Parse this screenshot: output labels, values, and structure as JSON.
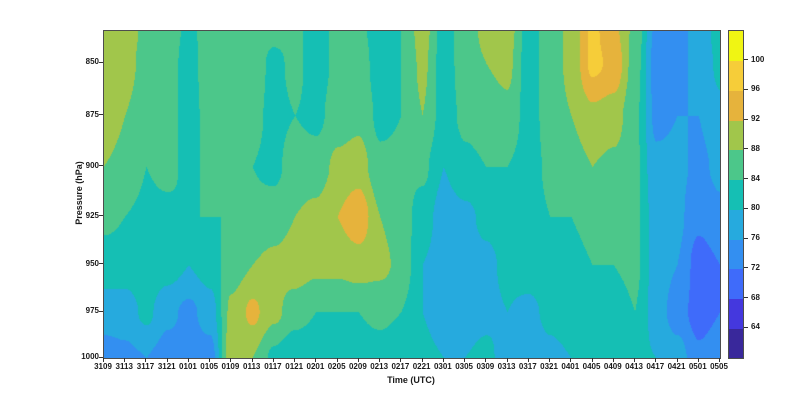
{
  "figure": {
    "background": "#ffffff",
    "frame_color": "#4d4d4d",
    "text_color": "#1a1a1a"
  },
  "axes": {
    "x_title": "Time (UTC)",
    "y_title": "Pressure (hPa)",
    "x_tick_labels": [
      "3109",
      "3113",
      "3117",
      "3121",
      "0101",
      "0105",
      "0109",
      "0113",
      "0117",
      "0121",
      "0201",
      "0205",
      "0209",
      "0213",
      "0217",
      "0221",
      "0301",
      "0305",
      "0309",
      "0313",
      "0317",
      "0321",
      "0401",
      "0405",
      "0409",
      "0413",
      "0417",
      "0421",
      "0501",
      "0505"
    ],
    "y_tick_labels": [
      "850",
      "875",
      "900",
      "925",
      "950",
      "975",
      "1000"
    ],
    "y_tick_values": [
      850,
      875,
      900,
      925,
      950,
      975,
      1000
    ],
    "y_scale": "log",
    "y_range": [
      835,
      1000
    ],
    "y_direction": "increasing-downward"
  },
  "colorbar": {
    "position": "right",
    "range": [
      60,
      104
    ],
    "band_size": 4,
    "tick_values": [
      64,
      68,
      72,
      76,
      80,
      84,
      88,
      92,
      96,
      100
    ],
    "tick_labels": [
      "64",
      "68",
      "72",
      "76",
      "80",
      "84",
      "88",
      "92",
      "96",
      "100"
    ],
    "band_colors_low_to_high": [
      "#39289b",
      "#4438de",
      "#3f6bfa",
      "#338ff1",
      "#26aade",
      "#15bfb4",
      "#4cc78a",
      "#a1c64b",
      "#e6b33c",
      "#f6cd39",
      "#f0f513"
    ]
  },
  "chart_data": {
    "type": "heatmap",
    "subtype": "filled-contour-time-height-section",
    "title": "",
    "xlabel": "Time (UTC)",
    "ylabel": "Pressure (hPa)",
    "legend": "discrete colorbar, bands of 4 from 60 to 104",
    "x": [
      "3109",
      "3113",
      "3117",
      "3121",
      "0101",
      "0105",
      "0109",
      "0113",
      "0117",
      "0121",
      "0201",
      "0205",
      "0209",
      "0213",
      "0217",
      "0221",
      "0301",
      "0305",
      "0309",
      "0313",
      "0317",
      "0321",
      "0401",
      "0405",
      "0409",
      "0413",
      "0417",
      "0421",
      "0501",
      "0505"
    ],
    "pressure_levels": [
      835,
      850,
      875,
      900,
      925,
      950,
      975,
      1000
    ],
    "values_by_pressure_row": [
      [
        90,
        90,
        87,
        86,
        83,
        86,
        87,
        86,
        85,
        85,
        82,
        85,
        85,
        82,
        84,
        90,
        82,
        86,
        89,
        90,
        82,
        86,
        89,
        97,
        93,
        87,
        75,
        75,
        77,
        82
      ],
      [
        90,
        90,
        86,
        86,
        82,
        87,
        87,
        86,
        83,
        85,
        82,
        85,
        86,
        82,
        84,
        89,
        82,
        86,
        88,
        89,
        82,
        86,
        89,
        97,
        95,
        86,
        74,
        75,
        77,
        81
      ],
      [
        90,
        88,
        85,
        86,
        82,
        86,
        86,
        85,
        83,
        84,
        83,
        86,
        87,
        83,
        84,
        88,
        82,
        85,
        86,
        87,
        82,
        86,
        88,
        91,
        90,
        85,
        75,
        76,
        76,
        79
      ],
      [
        88,
        87,
        84,
        85,
        83,
        85,
        84,
        84,
        83,
        86,
        86,
        89,
        90,
        85,
        85,
        85,
        80,
        83,
        84,
        84,
        82,
        85,
        86,
        88,
        87,
        85,
        77,
        77,
        75,
        77
      ],
      [
        85,
        84,
        83,
        83,
        84,
        84,
        84,
        85,
        86,
        88,
        89,
        92,
        95,
        88,
        86,
        82,
        78,
        79,
        81,
        82,
        82,
        84,
        84,
        85,
        85,
        85,
        78,
        77,
        73,
        75
      ],
      [
        82,
        82,
        83,
        82,
        80,
        82,
        86,
        88,
        89,
        90,
        89,
        89,
        90,
        89,
        87,
        80,
        78,
        78,
        79,
        81,
        82,
        83,
        83,
        84,
        84,
        85,
        78,
        76,
        70,
        72
      ],
      [
        78,
        78,
        81,
        77,
        75,
        78,
        89,
        93,
        89,
        86,
        84,
        84,
        84,
        85,
        84,
        80,
        78,
        78,
        79,
        80,
        79,
        81,
        82,
        83,
        82,
        84,
        78,
        74,
        70,
        72
      ],
      [
        74,
        75,
        76,
        74,
        74,
        74,
        91,
        88,
        83,
        80,
        80,
        81,
        82,
        82,
        81,
        81,
        80,
        80,
        81,
        78,
        77,
        79,
        80,
        82,
        81,
        81,
        80,
        78,
        73,
        75
      ]
    ]
  }
}
